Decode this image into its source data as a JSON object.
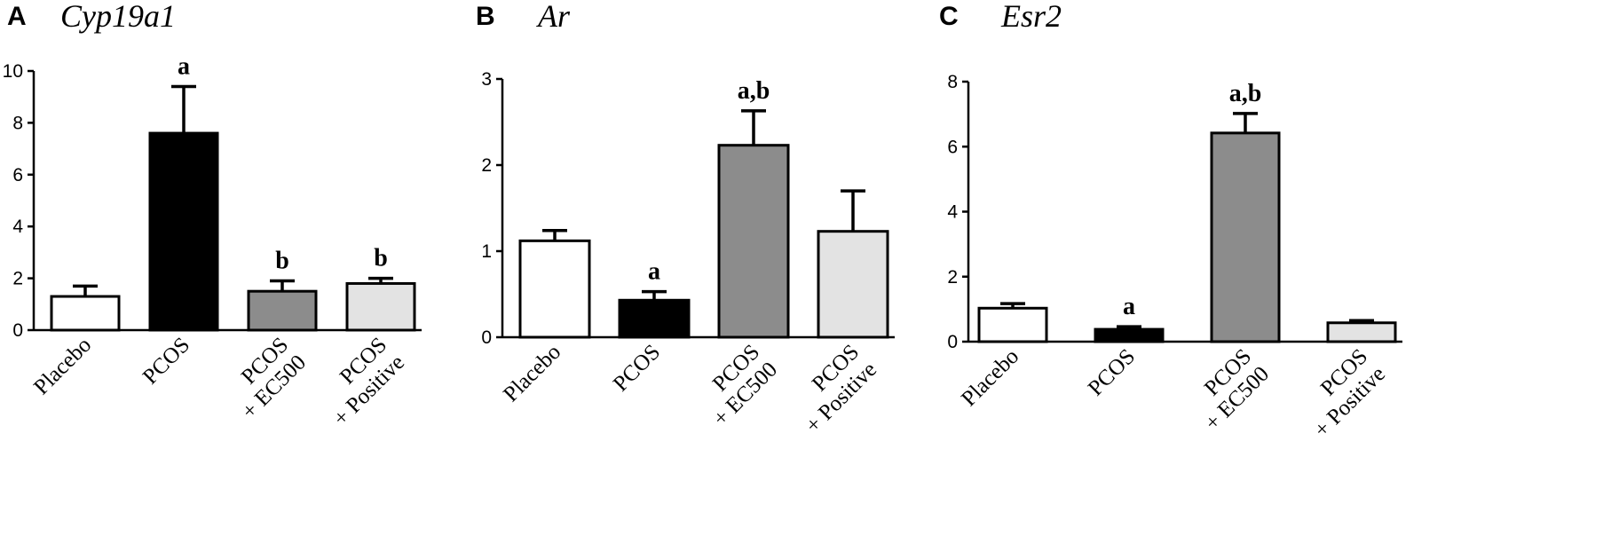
{
  "chart_data": [
    {
      "type": "bar",
      "panel": "A",
      "title": "Cyp19a1",
      "categories": [
        "Placebo",
        "PCOS",
        "PCOS\n+ EC500",
        "PCOS\n+ Positive"
      ],
      "values": [
        1.3,
        7.6,
        1.5,
        1.8
      ],
      "errors": [
        0.4,
        1.8,
        0.4,
        0.2
      ],
      "significance": [
        "",
        "a",
        "b",
        "b"
      ],
      "bar_colors": [
        "#ffffff",
        "#000000",
        "#8c8c8c",
        "#e3e3e3"
      ],
      "ylim": [
        0,
        10
      ],
      "yticks": [
        0,
        2,
        4,
        6,
        8,
        10
      ],
      "xlabel": "",
      "ylabel": ""
    },
    {
      "type": "bar",
      "panel": "B",
      "title": "Ar",
      "categories": [
        "Placebo",
        "PCOS",
        "PCOS\n+ EC500",
        "PCOS\n+ Positive"
      ],
      "values": [
        1.12,
        0.43,
        2.23,
        1.23
      ],
      "errors": [
        0.12,
        0.1,
        0.4,
        0.47
      ],
      "significance": [
        "",
        "a",
        "a,b",
        ""
      ],
      "bar_colors": [
        "#ffffff",
        "#000000",
        "#8c8c8c",
        "#e3e3e3"
      ],
      "ylim": [
        0,
        3
      ],
      "yticks": [
        0,
        1,
        2,
        3
      ],
      "xlabel": "",
      "ylabel": ""
    },
    {
      "type": "bar",
      "panel": "C",
      "title": "Esr2",
      "categories": [
        "Placebo",
        "PCOS",
        "PCOS\n+ EC500",
        "PCOS\n+ Positive"
      ],
      "values": [
        1.03,
        0.38,
        6.42,
        0.58
      ],
      "errors": [
        0.14,
        0.08,
        0.6,
        0.07
      ],
      "significance": [
        "",
        "a",
        "a,b",
        ""
      ],
      "bar_colors": [
        "#ffffff",
        "#000000",
        "#8c8c8c",
        "#e3e3e3"
      ],
      "ylim": [
        0,
        8
      ],
      "yticks": [
        0,
        2,
        4,
        6,
        8
      ],
      "xlabel": "",
      "ylabel": ""
    }
  ]
}
